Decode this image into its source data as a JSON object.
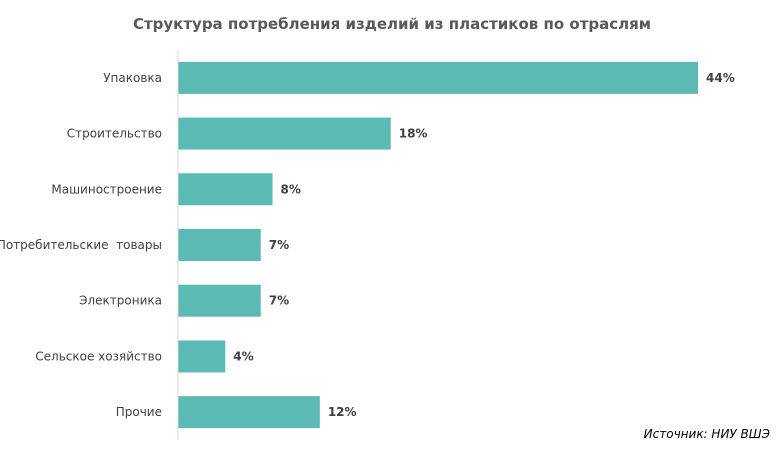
{
  "chart_data": {
    "type": "bar",
    "orientation": "horizontal",
    "title": "Структура потребления изделий из пластиков по отраслям",
    "categories": [
      "Упаковка",
      "Строительство",
      "Машиностроение",
      "Потребительские  товары",
      "Электроника",
      "Сельское хозяйство",
      "Прочие"
    ],
    "values": [
      44,
      18,
      8,
      7,
      7,
      4,
      12
    ],
    "value_labels": [
      "44%",
      "18%",
      "8%",
      "7%",
      "7%",
      "4%",
      "12%"
    ],
    "xlim": [
      0,
      44
    ],
    "grid": false,
    "bar_color": "#5BBBB4",
    "axis_color": "#D9D9D9",
    "xlabel": "",
    "ylabel": ""
  },
  "source": "Источник: НИУ ВШЭ"
}
